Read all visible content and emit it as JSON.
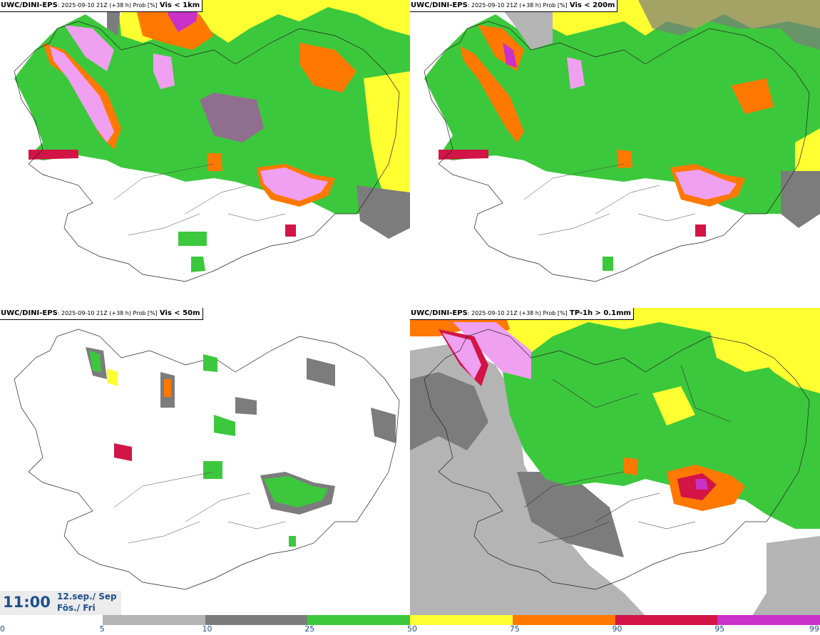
{
  "panels": [
    {
      "model": "UWC/DINI-EPS",
      "meta": ": 2025-09-10 21Z (+38 h) Prob [%]",
      "threshold": "Vis < 1km"
    },
    {
      "model": "UWC/DINI-EPS",
      "meta": ": 2025-09-10 21Z (+38 h) Prob [%]",
      "threshold": "Vis < 200m"
    },
    {
      "model": "UWC/DINI-EPS",
      "meta": ": 2025-09-10 21Z (+38 h) Prob [%]",
      "threshold": "Vis < 50m"
    },
    {
      "model": "UWC/DINI-EPS",
      "meta": ": 2025-09-10 21Z (+38 h) Prob [%]",
      "threshold": "TP-1h > 0.1mm"
    }
  ],
  "valid_time": {
    "time": "11:00",
    "date_line1": "12.sep./ Sep",
    "date_line2": "Fös./ Fri"
  },
  "legend": {
    "ticks": [
      "0",
      "5",
      "10",
      "25",
      "50",
      "75",
      "90",
      "95",
      "99"
    ],
    "colors": [
      "#ffffff",
      "#b4b4b4",
      "#7c7c7c",
      "#3cc83c",
      "#ffff32",
      "#ff7800",
      "#d21446",
      "#c832c8",
      "#f0a0f0"
    ]
  }
}
